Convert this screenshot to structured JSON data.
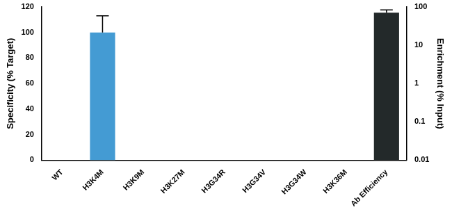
{
  "chart_data": {
    "type": "bar",
    "categories": [
      "WT",
      "H3K4M",
      "H3K9M",
      "H3K27M",
      "H3G34R",
      "H3G34V",
      "H3G34W",
      "H3K36M",
      "Ab Efficiency"
    ],
    "y_label": "Specificity (% Target)",
    "y2_label": "Enrichment (% Input)",
    "ylim": [
      0,
      120
    ],
    "yticks": [
      0,
      20,
      40,
      60,
      80,
      100,
      120
    ],
    "y2lim": [
      0.01,
      100
    ],
    "y2ticks": [
      0.01,
      0.1,
      1,
      10,
      100
    ],
    "log": "y2",
    "grid": false,
    "series": [
      {
        "color": "#449bd3",
        "values": [
          0,
          100,
          0,
          0,
          0,
          0,
          0,
          0,
          null
        ],
        "errors": [
          null,
          13,
          null,
          null,
          null,
          null,
          null,
          null,
          null
        ]
      },
      {
        "color": "#23292a",
        "axis": "y2",
        "values": [
          null,
          null,
          null,
          null,
          null,
          null,
          null,
          null,
          71
        ],
        "errors": [
          null,
          null,
          null,
          null,
          null,
          null,
          null,
          null,
          13
        ]
      }
    ]
  }
}
